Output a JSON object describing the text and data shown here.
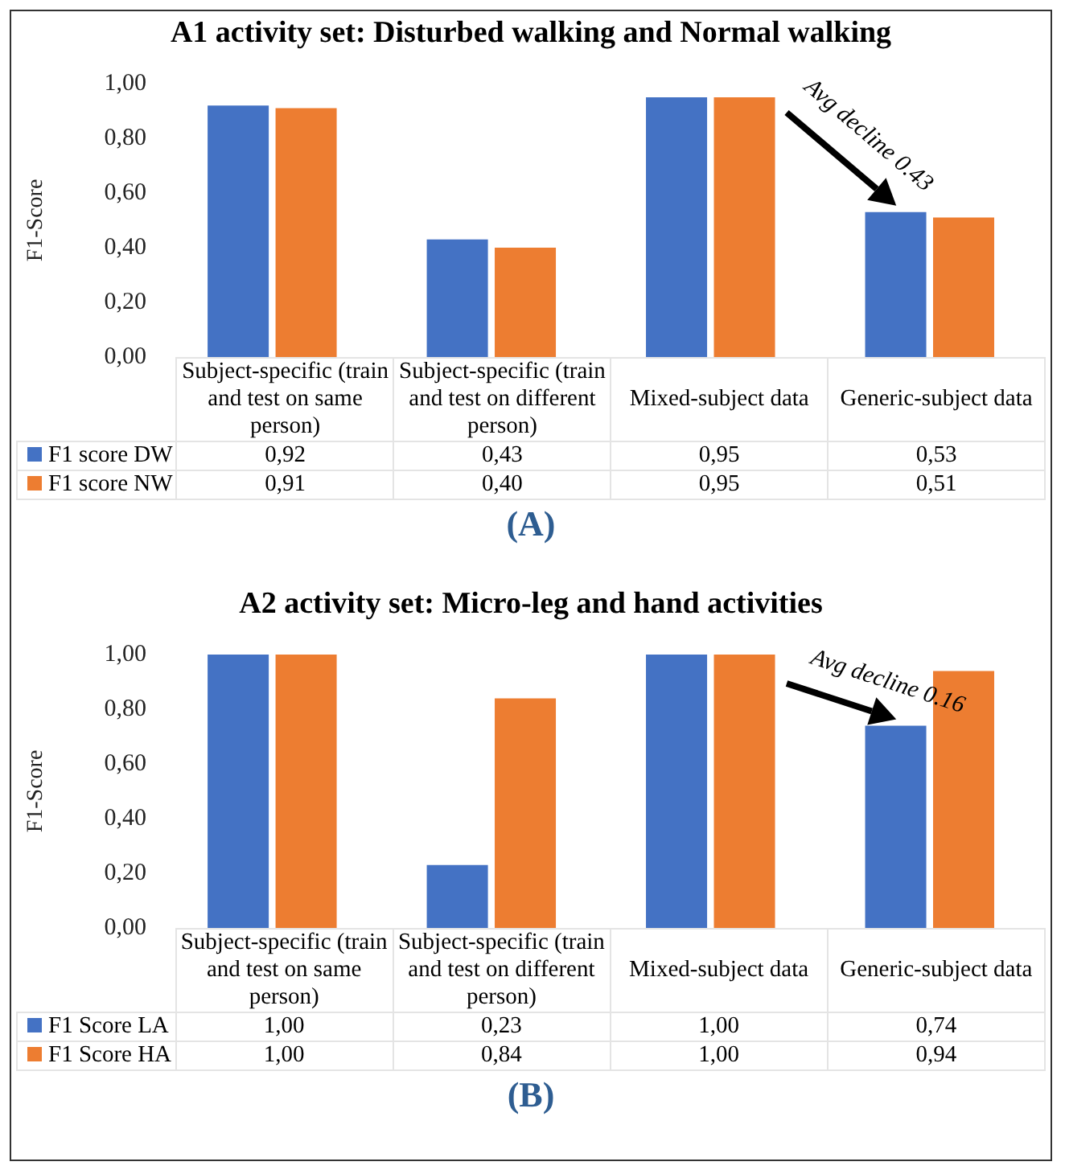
{
  "chart_data": [
    {
      "type": "bar",
      "title": "A1 activity set: Disturbed walking and Normal walking",
      "ylabel": "F1-Score",
      "categories": [
        "Subject-specific (train and test on same person)",
        "Subject-specific (train and test on different person)",
        "Mixed-subject data",
        "Generic-subject data"
      ],
      "series": [
        {
          "name": "F1 score DW",
          "color": "#4472c4",
          "values": [
            0.92,
            0.43,
            0.95,
            0.53
          ],
          "value_labels": [
            "0,92",
            "0,43",
            "0,95",
            "0,53"
          ]
        },
        {
          "name": "F1 score NW",
          "color": "#ed7d31",
          "values": [
            0.91,
            0.4,
            0.95,
            0.51
          ],
          "value_labels": [
            "0,91",
            "0,40",
            "0,95",
            "0,51"
          ]
        }
      ],
      "ylim": [
        0,
        1
      ],
      "yticks": [
        {
          "value": 0,
          "label": "0,00"
        },
        {
          "value": 0.2,
          "label": "0,20"
        },
        {
          "value": 0.4,
          "label": "0,40"
        },
        {
          "value": 0.6,
          "label": "0,60"
        },
        {
          "value": 0.8,
          "label": "0,80"
        },
        {
          "value": 1,
          "label": "1,00"
        }
      ],
      "grid": false,
      "legend": "bottom left",
      "annotations": [
        {
          "text": "Avg decline 0.43",
          "x": "Generic-subject data",
          "y": 0.53
        },
        "(A)"
      ]
    },
    {
      "type": "bar",
      "title": "A2 activity set: Micro-leg and hand activities",
      "ylabel": "F1-Score",
      "categories": [
        "Subject-specific (train and test on same person)",
        "Subject-specific (train and test on different person)",
        "Mixed-subject data",
        "Generic-subject data"
      ],
      "series": [
        {
          "name": "F1 Score LA",
          "color": "#4472c4",
          "values": [
            1.0,
            0.23,
            1.0,
            0.74
          ],
          "value_labels": [
            "1,00",
            "0,23",
            "1,00",
            "0,74"
          ]
        },
        {
          "name": "F1 Score HA",
          "color": "#ed7d31",
          "values": [
            1.0,
            0.84,
            1.0,
            0.94
          ],
          "value_labels": [
            "1,00",
            "0,84",
            "1,00",
            "0,94"
          ]
        }
      ],
      "ylim": [
        0,
        1
      ],
      "yticks": [
        {
          "value": 0,
          "label": "0,00"
        },
        {
          "value": 0.2,
          "label": "0,20"
        },
        {
          "value": 0.4,
          "label": "0,40"
        },
        {
          "value": 0.6,
          "label": "0,60"
        },
        {
          "value": 0.8,
          "label": "0,80"
        },
        {
          "value": 1,
          "label": "1,00"
        }
      ],
      "grid": false,
      "legend": "bottom left",
      "annotations": [
        {
          "text": "Avg decline 0.16",
          "x": "Generic-subject data",
          "y": 0.74
        },
        "(B)"
      ]
    }
  ]
}
